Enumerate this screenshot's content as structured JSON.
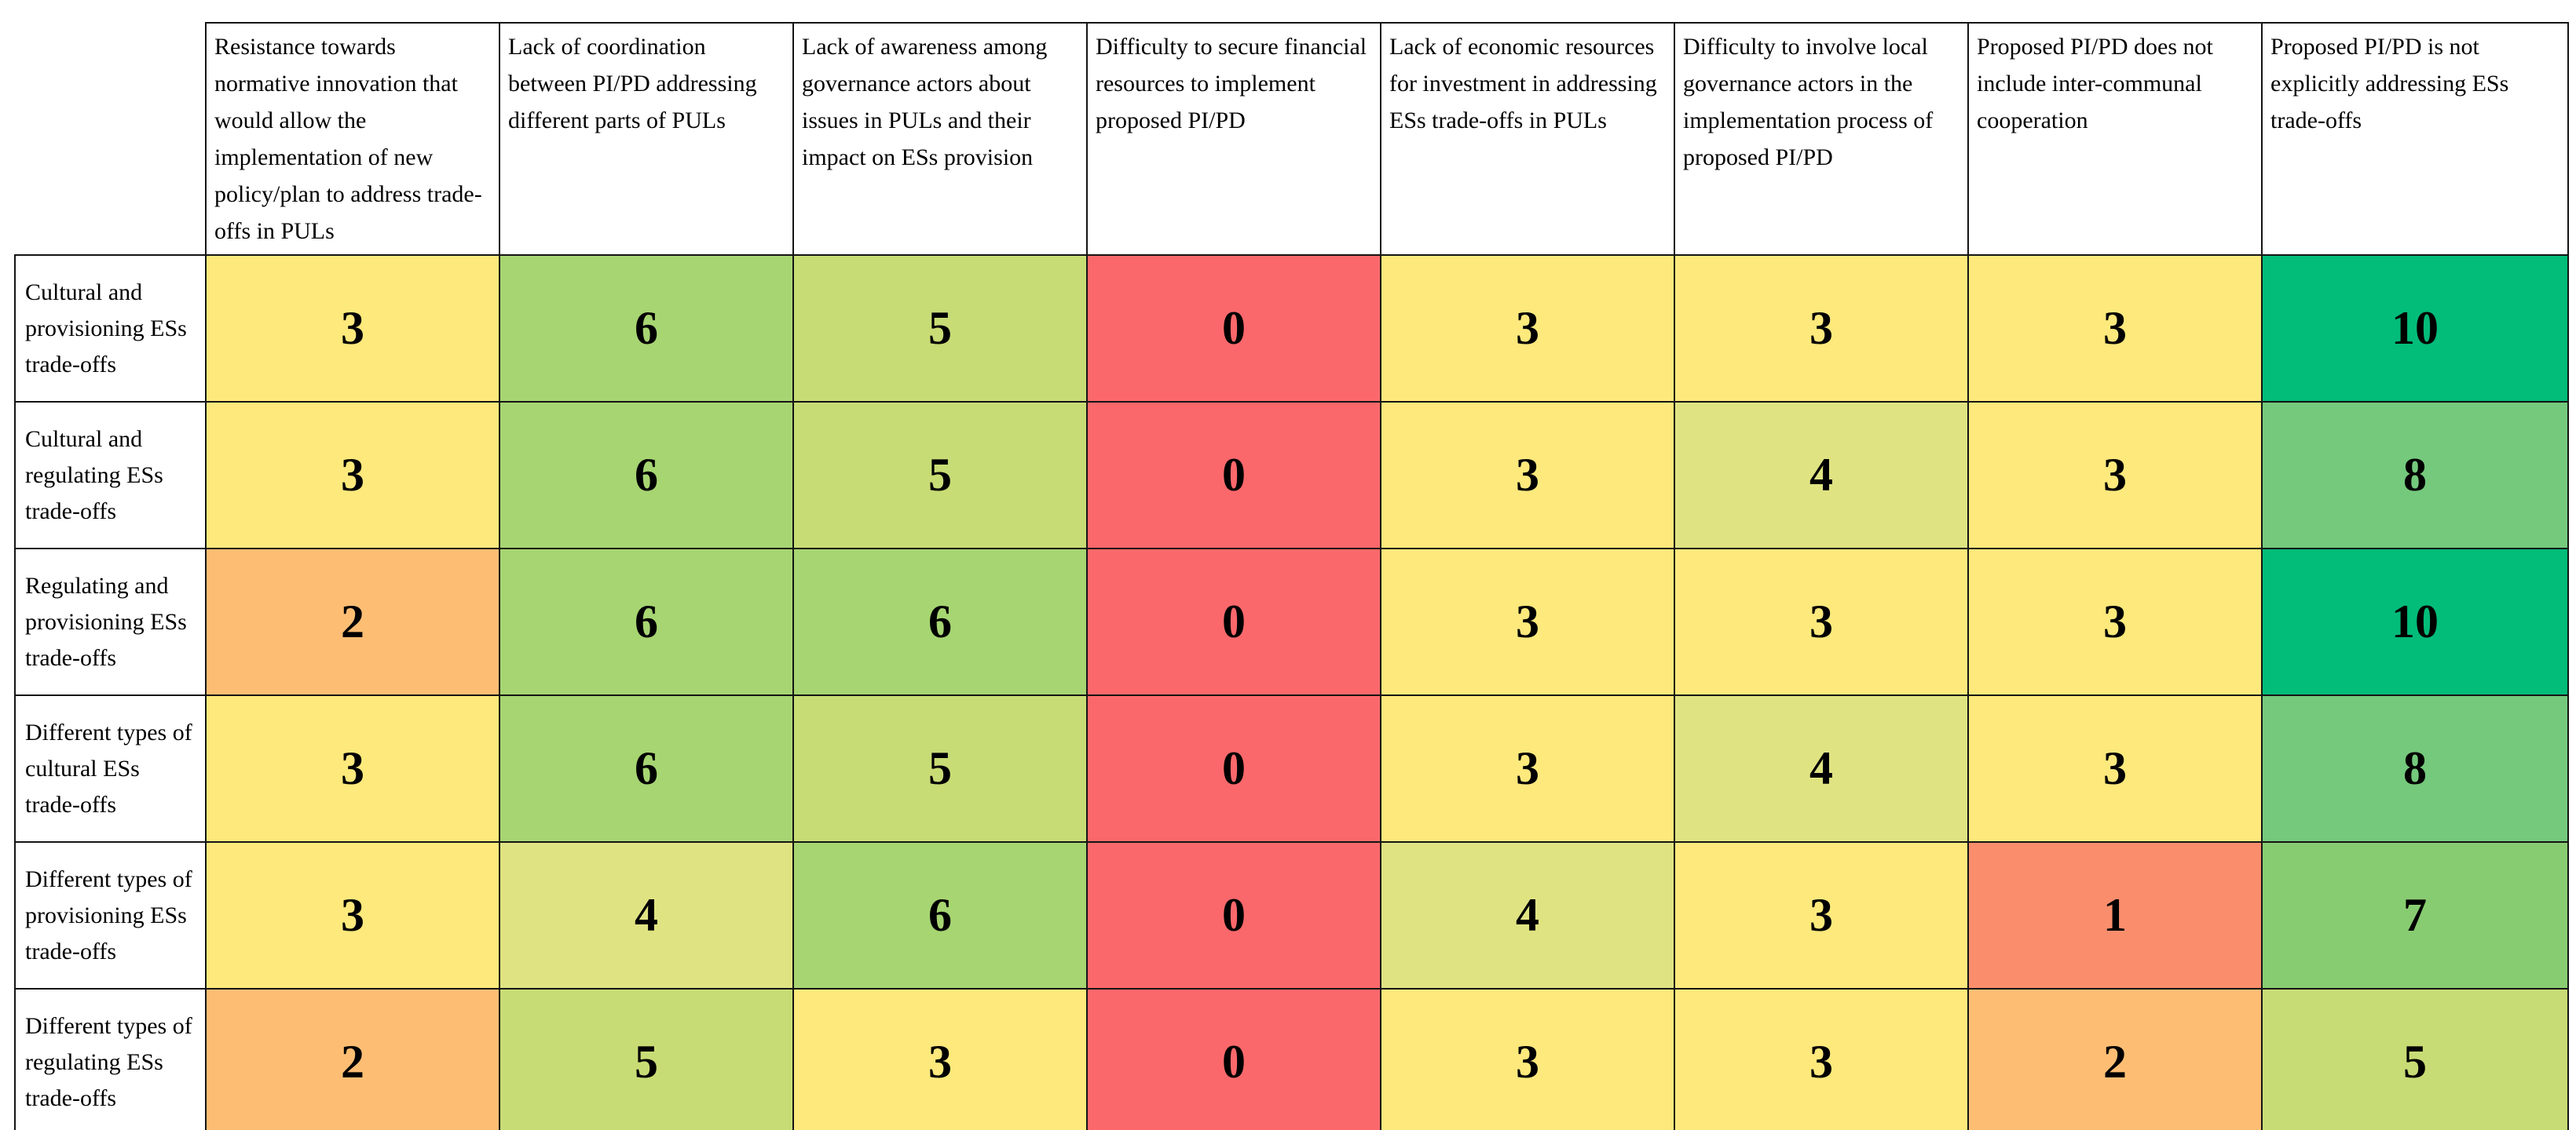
{
  "chart_data": {
    "type": "heatmap",
    "title": "",
    "columns": [
      "Resistance towards normative innovation that would allow the implementation of new policy/plan to address trade-offs in PULs",
      "Lack of coordination between PI/PD addressing different parts of PULs",
      "Lack of awareness among governance actors about issues in PULs and their impact on ESs provision",
      "Difficulty to secure financial resources to implement proposed PI/PD",
      "Lack of economic resources for investment in addressing ESs trade-offs in PULs",
      "Difficulty to involve local governance actors in the implementation process of proposed PI/PD",
      "Proposed PI/PD does not include inter-communal cooperation",
      "Proposed PI/PD is not explicitly addressing ESs trade-offs"
    ],
    "rows": [
      "Cultural and provisioning ESs trade-offs",
      "Cultural and regulating ESs trade-offs",
      "Regulating and provisioning ESs trade-offs",
      "Different types of cultural ESs trade-offs",
      "Different types of provisioning ESs trade-offs",
      "Different types of regulating ESs trade-offs"
    ],
    "values": [
      [
        3,
        6,
        5,
        0,
        3,
        3,
        3,
        10
      ],
      [
        3,
        6,
        5,
        0,
        3,
        4,
        3,
        8
      ],
      [
        2,
        6,
        6,
        0,
        3,
        3,
        3,
        10
      ],
      [
        3,
        6,
        5,
        0,
        3,
        4,
        3,
        8
      ],
      [
        3,
        4,
        6,
        0,
        4,
        3,
        1,
        7
      ],
      [
        2,
        5,
        3,
        0,
        3,
        3,
        2,
        5
      ]
    ],
    "scale": {
      "min": 0,
      "max": 10,
      "palette": "red-yellow-green"
    },
    "value_colors": {
      "0": "#FB686B",
      "1": "#FA8E6C",
      "2": "#FDBE74",
      "3": "#FDE97C",
      "4": "#DFE382",
      "5": "#C8DC75",
      "6": "#A7D572",
      "7": "#88CC72",
      "8": "#74C97C",
      "10": "#02BC79"
    }
  }
}
